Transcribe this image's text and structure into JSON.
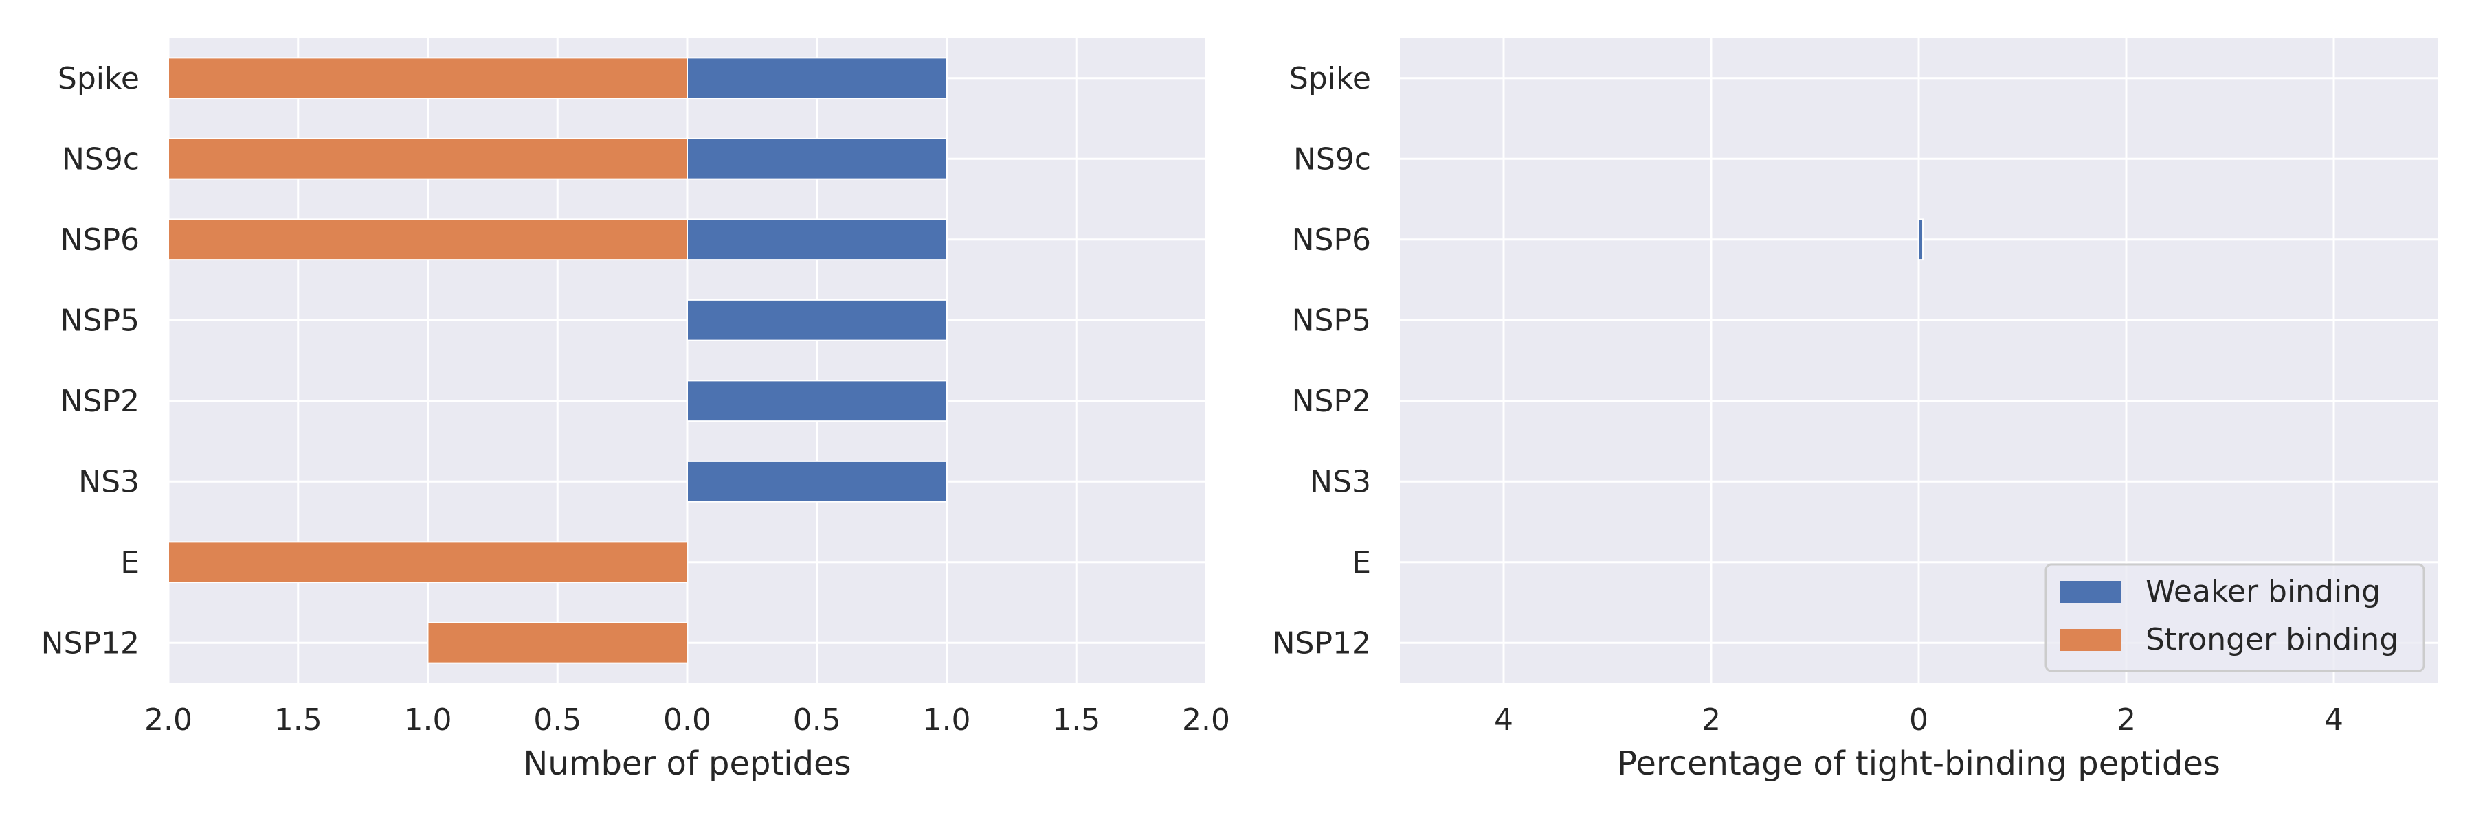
{
  "chart_data": [
    {
      "type": "bar",
      "orientation": "horizontal",
      "diverging": true,
      "title": "",
      "xlabel": "Number of peptides",
      "ylabel": "",
      "categories": [
        "Spike",
        "NS9c",
        "NSP6",
        "NSP5",
        "NSP2",
        "NS3",
        "E",
        "NSP12"
      ],
      "series": [
        {
          "values": [
            1,
            1,
            1,
            1,
            1,
            1,
            0,
            0
          ],
          "color": "#4c72b0",
          "direction": "right"
        },
        {
          "values": [
            2,
            2,
            2,
            0,
            0,
            0,
            2,
            1
          ],
          "color": "#dd8452",
          "direction": "left"
        }
      ],
      "xlim": [
        -2,
        2
      ],
      "xtick_values": [
        -2,
        -1.5,
        -1,
        -0.5,
        0,
        0.5,
        1,
        1.5,
        2
      ],
      "xtick_labels": [
        "2.0",
        "1.5",
        "1.0",
        "0.5",
        "0.0",
        "0.5",
        "1.0",
        "1.5",
        "2.0"
      ],
      "grid": true,
      "legend": "none"
    },
    {
      "type": "bar",
      "orientation": "horizontal",
      "title": "",
      "xlabel": "Percentage of tight-binding peptides",
      "ylabel": "",
      "categories": [
        "Spike",
        "NS9c",
        "NSP6",
        "NSP5",
        "NSP2",
        "NS3",
        "E",
        "NSP12"
      ],
      "series": [
        {
          "name": "Weaker binding",
          "values": [
            0,
            0,
            0.04,
            0,
            0,
            0,
            0,
            0
          ],
          "color": "#4c72b0"
        },
        {
          "name": "Stronger binding",
          "values": [
            0,
            0,
            0,
            0,
            0,
            0,
            0,
            0
          ],
          "color": "#dd8452"
        }
      ],
      "xlim": [
        -5,
        5
      ],
      "xtick_values": [
        -4,
        -2,
        0,
        2,
        4
      ],
      "xtick_labels": [
        "4",
        "2",
        "0",
        "2",
        "4"
      ],
      "grid": true,
      "legend": "lower-right"
    }
  ],
  "style": {
    "axes_background": "#eaeaf2",
    "grid_color": "#ffffff",
    "text_color": "#262626",
    "weaker_color": "#4c72b0",
    "stronger_color": "#dd8452"
  }
}
